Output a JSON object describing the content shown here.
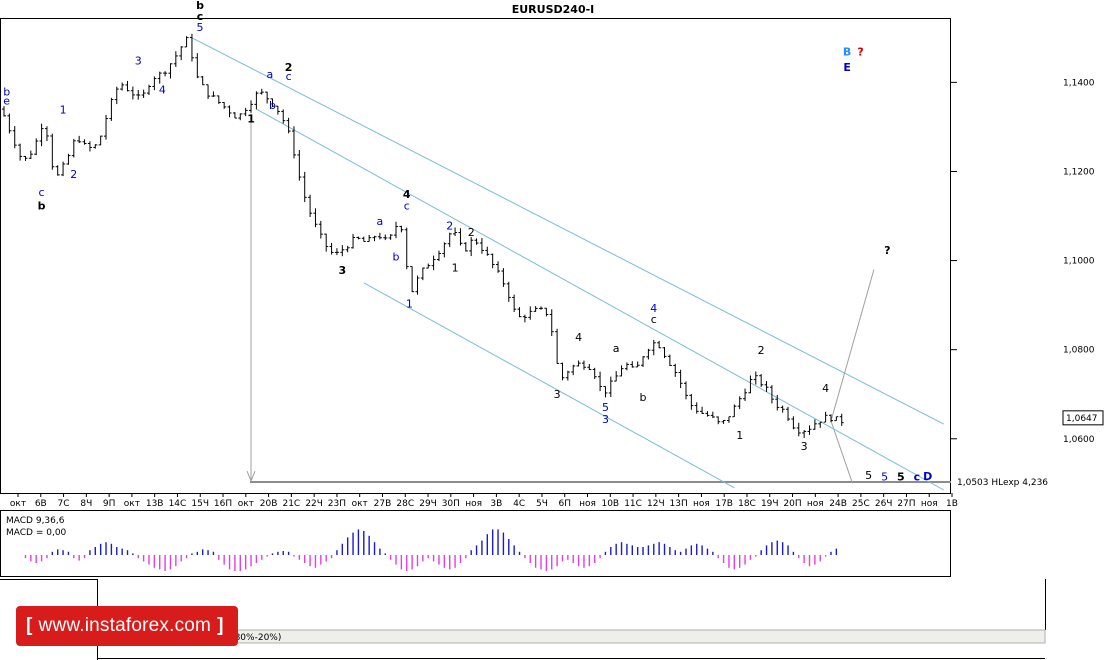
{
  "chart_data": {
    "type": "candlestick",
    "title": "EURUSD240-I",
    "y_ticks": [
      "1,1400",
      "1,1200",
      "1,1000",
      "1,0800",
      "1,0600"
    ],
    "y_range": [
      1.0485,
      1.154
    ],
    "current_price": "1,0647",
    "hline": {
      "value": 1.0503,
      "label": "1,0503 HLexp 4,236"
    },
    "x_ticks": [
      "окт",
      "6В",
      "7С",
      "8Ч",
      "9П",
      "окт",
      "13В",
      "14С",
      "15Ч",
      "16П",
      "окт",
      "20В",
      "21С",
      "22Ч",
      "23П",
      "окт",
      "27В",
      "28С",
      "29Ч",
      "30П",
      "ноя",
      "3В",
      "4С",
      "5Ч",
      "6П",
      "ноя",
      "10В",
      "11С",
      "12Ч",
      "13П",
      "ноя",
      "17В",
      "18С",
      "19Ч",
      "20П",
      "ноя",
      "24В",
      "25С",
      "26Ч",
      "27П",
      "ноя",
      "1В"
    ],
    "price_path": [
      [
        0,
        1.134
      ],
      [
        2,
        1.128
      ],
      [
        4,
        1.122
      ],
      [
        6,
        1.125
      ],
      [
        8,
        1.132
      ],
      [
        10,
        1.118
      ],
      [
        12,
        1.122
      ],
      [
        14,
        1.128
      ],
      [
        16,
        1.125
      ],
      [
        18,
        1.126
      ],
      [
        20,
        1.134
      ],
      [
        22,
        1.14
      ],
      [
        24,
        1.138
      ],
      [
        26,
        1.136
      ],
      [
        28,
        1.141
      ],
      [
        30,
        1.142
      ],
      [
        32,
        1.145
      ],
      [
        34,
        1.149
      ],
      [
        35,
        1.15
      ],
      [
        36,
        1.142
      ],
      [
        38,
        1.138
      ],
      [
        40,
        1.136
      ],
      [
        42,
        1.134
      ],
      [
        44,
        1.132
      ],
      [
        46,
        1.135
      ],
      [
        48,
        1.138
      ],
      [
        50,
        1.136
      ],
      [
        52,
        1.133
      ],
      [
        54,
        1.127
      ],
      [
        56,
        1.116
      ],
      [
        58,
        1.109
      ],
      [
        60,
        1.104
      ],
      [
        62,
        1.101
      ],
      [
        64,
        1.103
      ],
      [
        66,
        1.105
      ],
      [
        68,
        1.104
      ],
      [
        70,
        1.106
      ],
      [
        72,
        1.104
      ],
      [
        74,
        1.109
      ],
      [
        75,
        1.106
      ],
      [
        76,
        1.092
      ],
      [
        78,
        1.097
      ],
      [
        80,
        1.1
      ],
      [
        82,
        1.103
      ],
      [
        84,
        1.107
      ],
      [
        86,
        1.102
      ],
      [
        88,
        1.105
      ],
      [
        90,
        1.102
      ],
      [
        92,
        1.098
      ],
      [
        94,
        1.094
      ],
      [
        96,
        1.087
      ],
      [
        98,
        1.088
      ],
      [
        100,
        1.089
      ],
      [
        102,
        1.088
      ],
      [
        104,
        1.073
      ],
      [
        106,
        1.076
      ],
      [
        108,
        1.077
      ],
      [
        110,
        1.076
      ],
      [
        112,
        1.07
      ],
      [
        114,
        1.073
      ],
      [
        116,
        1.077
      ],
      [
        118,
        1.075
      ],
      [
        120,
        1.08
      ],
      [
        122,
        1.082
      ],
      [
        124,
        1.078
      ],
      [
        126,
        1.074
      ],
      [
        128,
        1.068
      ],
      [
        130,
        1.066
      ],
      [
        132,
        1.065
      ],
      [
        134,
        1.063
      ],
      [
        136,
        1.066
      ],
      [
        138,
        1.07
      ],
      [
        140,
        1.074
      ],
      [
        142,
        1.072
      ],
      [
        144,
        1.068
      ],
      [
        146,
        1.066
      ],
      [
        148,
        1.062
      ],
      [
        150,
        1.062
      ],
      [
        152,
        1.064
      ],
      [
        154,
        1.065
      ],
      [
        156,
        1.064
      ]
    ],
    "channels": [
      {
        "from": [
          35,
          1.15
        ],
        "to": [
          175,
          1.0633
        ]
      },
      {
        "from": [
          47,
          1.134
        ],
        "to": [
          175,
          1.0485
        ]
      },
      {
        "from": [
          67,
          1.095
        ],
        "to": [
          136,
          1.049
        ]
      }
    ],
    "arrows": [
      {
        "from": [
          46,
          1.133
        ],
        "to": [
          46,
          1.0505
        ]
      },
      {
        "from": [
          154,
          1.064
        ],
        "to": [
          162,
          1.098
        ]
      }
    ],
    "projection_lines": [
      {
        "from": [
          154,
          1.064
        ],
        "to": [
          158,
          1.05
        ]
      }
    ],
    "wave_labels": [
      {
        "t": "b",
        "x": 0.5,
        "y": 1.137,
        "c": "#0000c8"
      },
      {
        "t": "e",
        "x": 0.5,
        "y": 1.135,
        "c": "#0000c8"
      },
      {
        "t": "1",
        "x": 11,
        "y": 1.133,
        "c": "#0000c8"
      },
      {
        "t": "2",
        "x": 13,
        "y": 1.1185,
        "c": "#0000c8"
      },
      {
        "t": "c",
        "x": 7,
        "y": 1.1145,
        "c": "#0000c8"
      },
      {
        "t": "b",
        "x": 7,
        "y": 1.1115,
        "c": "#000000",
        "b": true
      },
      {
        "t": "3",
        "x": 25,
        "y": 1.144,
        "c": "#0000c8"
      },
      {
        "t": "4",
        "x": 29.5,
        "y": 1.1375,
        "c": "#0000c8"
      },
      {
        "t": "b",
        "x": 36.5,
        "y": 1.1565,
        "c": "#000000",
        "b": true
      },
      {
        "t": "c",
        "x": 36.5,
        "y": 1.154,
        "c": "#000000",
        "b": true
      },
      {
        "t": "5",
        "x": 36.5,
        "y": 1.1515,
        "c": "#0000c8"
      },
      {
        "t": "a",
        "x": 49.5,
        "y": 1.141,
        "c": "#0000c8"
      },
      {
        "t": "b",
        "x": 50,
        "y": 1.134,
        "c": "#0000c8"
      },
      {
        "t": "2",
        "x": 53,
        "y": 1.1425,
        "c": "#000000",
        "b": true
      },
      {
        "t": "c",
        "x": 53,
        "y": 1.1405,
        "c": "#0000c8"
      },
      {
        "t": "1",
        "x": 46,
        "y": 1.131,
        "c": "#000000",
        "b": true
      },
      {
        "t": "3",
        "x": 63,
        "y": 1.097,
        "c": "#000000",
        "b": true
      },
      {
        "t": "a",
        "x": 70,
        "y": 1.108,
        "c": "#0000c8"
      },
      {
        "t": "b",
        "x": 73,
        "y": 1.1,
        "c": "#0000c8"
      },
      {
        "t": "4",
        "x": 75,
        "y": 1.114,
        "c": "#000000",
        "b": true
      },
      {
        "t": "c",
        "x": 75,
        "y": 1.1115,
        "c": "#0000c8"
      },
      {
        "t": "1",
        "x": 75.5,
        "y": 1.0895,
        "c": "#0000c8"
      },
      {
        "t": "2",
        "x": 83,
        "y": 1.107,
        "c": "#0000c8"
      },
      {
        "t": "1",
        "x": 84,
        "y": 1.0975,
        "c": "#000000"
      },
      {
        "t": "2",
        "x": 87,
        "y": 1.1055,
        "c": "#000000"
      },
      {
        "t": "3",
        "x": 103,
        "y": 1.0692,
        "c": "#000000"
      },
      {
        "t": "4",
        "x": 107,
        "y": 1.082,
        "c": "#000000"
      },
      {
        "t": "5",
        "x": 112,
        "y": 1.0662,
        "c": "#0000c8"
      },
      {
        "t": "3",
        "x": 112,
        "y": 1.0635,
        "c": "#0000c8"
      },
      {
        "t": "a",
        "x": 114,
        "y": 1.0795,
        "c": "#000000"
      },
      {
        "t": "b",
        "x": 119,
        "y": 1.0685,
        "c": "#000000"
      },
      {
        "t": "4",
        "x": 121,
        "y": 1.0885,
        "c": "#0000c8"
      },
      {
        "t": "c",
        "x": 121,
        "y": 1.086,
        "c": "#000000"
      },
      {
        "t": "1",
        "x": 137,
        "y": 1.06,
        "c": "#000000"
      },
      {
        "t": "2",
        "x": 141,
        "y": 1.079,
        "c": "#000000"
      },
      {
        "t": "3",
        "x": 149,
        "y": 1.0575,
        "c": "#000000"
      },
      {
        "t": "4",
        "x": 153,
        "y": 1.0705,
        "c": "#000000"
      },
      {
        "t": "?",
        "x": 164.5,
        "y": 1.1015,
        "c": "#000000",
        "b": true
      },
      {
        "t": "5",
        "x": 161,
        "y": 1.051,
        "c": "#000000"
      },
      {
        "t": "5",
        "x": 164,
        "y": 1.0506,
        "c": "#0000c8"
      },
      {
        "t": "5",
        "x": 167,
        "y": 1.0506,
        "c": "#000000",
        "b": true
      },
      {
        "t": "c",
        "x": 170,
        "y": 1.0506,
        "c": "#0000c8",
        "b": true
      },
      {
        "t": "D",
        "x": 172,
        "y": 1.0508,
        "c": "#0000c8",
        "b": true
      },
      {
        "t": "B",
        "x": 157,
        "y": 1.146,
        "c": "#1e90ff",
        "b": true
      },
      {
        "t": "?",
        "x": 159.5,
        "y": 1.146,
        "c": "#d80000",
        "b": true
      },
      {
        "t": "E",
        "x": 157,
        "y": 1.1425,
        "c": "#0000c8",
        "b": true
      }
    ],
    "macd": {
      "label": "MACD 9,36,6",
      "value_label": "MACD = 0,00",
      "histogram": [
        -0.2,
        -0.4,
        -0.5,
        -0.4,
        -0.2,
        0.2,
        0.35,
        0.3,
        0.2,
        -0.2,
        -0.35,
        -0.2,
        0.3,
        0.5,
        0.7,
        0.8,
        0.7,
        0.5,
        0.4,
        0.3,
        0.1,
        -0.2,
        -0.4,
        -0.6,
        -0.8,
        -0.9,
        -1.0,
        -0.9,
        -0.7,
        -0.4,
        -0.2,
        0.1,
        0.2,
        0.35,
        0.3,
        0.2,
        -0.3,
        -0.6,
        -0.9,
        -1.0,
        -1.0,
        -0.9,
        -0.7,
        -0.5,
        -0.3,
        -0.1,
        0.1,
        0.2,
        0.25,
        0.2,
        -0.1,
        -0.3,
        -0.5,
        -0.7,
        -0.8,
        -0.6,
        -0.4,
        -0.2,
        0.3,
        0.7,
        1.1,
        1.4,
        1.6,
        1.5,
        1.2,
        0.8,
        0.4,
        0.1,
        -0.3,
        -0.6,
        -0.9,
        -1.0,
        -0.9,
        -0.7,
        -0.4,
        -0.2,
        -0.4,
        -0.6,
        -0.8,
        -0.9,
        -0.8,
        -0.5,
        -0.2,
        0.3,
        0.6,
        0.9,
        1.3,
        1.6,
        1.6,
        1.4,
        1.0,
        0.6,
        0.2,
        -0.2,
        -0.5,
        -0.8,
        -0.9,
        -1.0,
        -0.9,
        -0.7,
        -0.4,
        -0.3,
        -0.5,
        -0.7,
        -0.8,
        -0.7,
        -0.5,
        -0.2,
        0.2,
        0.5,
        0.7,
        0.8,
        0.7,
        0.6,
        0.5,
        0.5,
        0.6,
        0.7,
        0.8,
        0.7,
        0.5,
        0.3,
        0.2,
        0.4,
        0.6,
        0.7,
        0.6,
        0.4,
        0.2,
        -0.2,
        -0.5,
        -0.8,
        -0.9,
        -0.8,
        -0.6,
        -0.3,
        -0.1,
        0.3,
        0.6,
        0.8,
        0.9,
        0.8,
        0.6,
        0.2,
        -0.2,
        -0.5,
        -0.7,
        -0.6,
        -0.4,
        -0.1,
        0.2,
        0.4
      ]
    }
  },
  "logo": {
    "bracket": "[",
    "text": "www.instaforex.com",
    "bracket_close": "]"
  },
  "lower_caption": "MACD 9,36,6  Stoch 15,5,3  (80%-20%)"
}
